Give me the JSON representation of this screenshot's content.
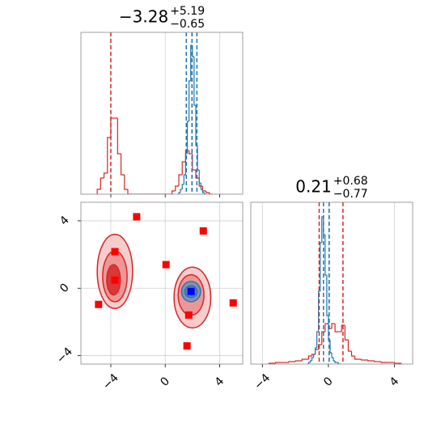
{
  "chart_data": [
    {
      "type": "histogram",
      "title": {
        "value": "−3.28",
        "plus": "+5.19",
        "minus": "−0.65"
      },
      "xlim": [
        -6.2,
        5.7
      ],
      "ylim": [
        0,
        1
      ],
      "xticks": [
        -4,
        0,
        4
      ],
      "grid": true,
      "series": [
        {
          "color": "#d62728",
          "bins": [
            -5,
            -4.75,
            -4.5,
            -4.25,
            -4,
            -3.75,
            -3.5,
            -3.25,
            -3,
            -2.75,
            -2.5,
            -2.25,
            -2,
            -1.75,
            -1.5,
            -1.25,
            -1,
            -0.75,
            -0.5,
            -0.25,
            0,
            0.25,
            0.5,
            0.75,
            1,
            1.25,
            1.5,
            1.75,
            2,
            2.25,
            2.5,
            2.75,
            3,
            3.25,
            3.5
          ],
          "values": [
            0.03,
            0.1,
            0.13,
            0.35,
            0.47,
            0.47,
            0.25,
            0.12,
            0.03,
            0,
            0,
            0,
            0,
            0,
            0,
            0,
            0,
            0,
            0,
            0,
            0,
            0,
            0.02,
            0.05,
            0.12,
            0.2,
            0.27,
            0.25,
            0.15,
            0.1,
            0.05,
            0.02,
            0.01,
            0
          ]
        },
        {
          "color": "#1f77b4",
          "bins": [
            1,
            1.125,
            1.25,
            1.375,
            1.5,
            1.625,
            1.75,
            1.875,
            2,
            2.125,
            2.25,
            2.375,
            2.5,
            2.625,
            2.75,
            2.875,
            3
          ],
          "values": [
            0.01,
            0.03,
            0.06,
            0.12,
            0.25,
            0.45,
            0.7,
            0.92,
            0.85,
            0.55,
            0.3,
            0.15,
            0.07,
            0.03,
            0.01,
            0
          ]
        }
      ],
      "lines": [
        {
          "color": "#d62728",
          "x": [
            -4.0,
            1.97
          ]
        },
        {
          "color": "#1f77b4",
          "x": [
            1.55,
            1.97,
            2.33
          ]
        }
      ]
    },
    {
      "type": "scatter",
      "xlim": [
        -6.2,
        5.7
      ],
      "ylim": [
        -4.5,
        5.1
      ],
      "xticks": [
        {
          "value": -4,
          "label": "−4"
        },
        0,
        4
      ],
      "yticks": [
        {
          "value": -4,
          "label": "−4"
        },
        0,
        4
      ],
      "grid": true,
      "contours": [
        {
          "color": "#d62728",
          "fill": "#f5c4c4",
          "cx": -3.7,
          "cy": 1.0,
          "rx": 1.3,
          "ry": 2.2
        },
        {
          "color": "#d62728",
          "fill": "#ec8c8c",
          "cx": -3.7,
          "cy": 0.7,
          "rx": 0.9,
          "ry": 1.5
        },
        {
          "color": "#d62728",
          "fill": "#d62728",
          "cx": -3.8,
          "cy": 0.5,
          "rx": 0.5,
          "ry": 0.9
        },
        {
          "color": "#d62728",
          "fill": "#f5c4c4",
          "cx": 2.0,
          "cy": -0.55,
          "rx": 1.35,
          "ry": 1.8
        },
        {
          "color": "#d62728",
          "fill": "#ec8c8c",
          "cx": 1.9,
          "cy": -0.4,
          "rx": 0.95,
          "ry": 1.2
        },
        {
          "color": "#d62728",
          "fill": "#d62728",
          "cx": 1.9,
          "cy": -0.2,
          "rx": 0.6,
          "ry": 0.5
        },
        {
          "color": "#1f77b4",
          "fill": "#7f9fc4",
          "cx": 1.9,
          "cy": -0.2,
          "rx": 0.7,
          "ry": 0.6
        },
        {
          "color": "#1f77b4",
          "fill": "#4f7fb8",
          "cx": 1.9,
          "cy": -0.2,
          "rx": 0.45,
          "ry": 0.35
        },
        {
          "color": "#1f77b4",
          "fill": "#1f5fa8",
          "cx": 1.9,
          "cy": -0.2,
          "rx": 0.2,
          "ry": 0.2
        }
      ],
      "series": [
        {
          "color": "#ff0000",
          "x": [
            -2.1,
            2.8,
            -3.7,
            0.06,
            -3.7,
            -4.9,
            5.0,
            1.73,
            1.6
          ],
          "values": [
            4.24,
            3.4,
            2.17,
            1.4,
            0.48,
            -0.96,
            -0.87,
            -1.59,
            -3.42
          ]
        },
        {
          "color": "#0000ff",
          "x": [
            1.9
          ],
          "values": [
            -0.19
          ]
        }
      ]
    },
    {
      "type": "histogram",
      "title": {
        "value": "0.21",
        "plus": "+0.68",
        "minus": "−0.77"
      },
      "xlim": [
        -4.7,
        5.1
      ],
      "ylim": [
        0,
        1
      ],
      "xticks": [
        {
          "value": -4,
          "label": "−4"
        },
        0,
        4
      ],
      "grid": true,
      "series": [
        {
          "color": "#d62728",
          "bins": [
            -3.6,
            -3.2,
            -2.8,
            -2.4,
            -2,
            -1.6,
            -1.2,
            -1,
            -0.8,
            -0.6,
            -0.4,
            -0.2,
            0,
            0.2,
            0.4,
            0.6,
            0.8,
            1,
            1.2,
            1.4,
            1.6,
            2,
            2.4,
            2.8,
            3.2,
            3.6,
            4,
            4.4
          ],
          "values": [
            0.005,
            0.01,
            0.01,
            0.015,
            0.02,
            0.03,
            0.05,
            0.06,
            0.09,
            0.12,
            0.2,
            0.25,
            0.22,
            0.25,
            0.2,
            0.2,
            0.24,
            0.15,
            0.08,
            0.05,
            0.03,
            0.025,
            0.02,
            0.015,
            0.01,
            0.01,
            0.005
          ]
        },
        {
          "color": "#1f77b4",
          "bins": [
            -1.2,
            -1.1,
            -1,
            -0.9,
            -0.8,
            -0.7,
            -0.6,
            -0.5,
            -0.4,
            -0.3,
            -0.2,
            -0.1,
            0,
            0.1,
            0.2,
            0.3,
            0.4,
            0.5,
            0.6,
            0.7,
            0.8
          ],
          "values": [
            0.01,
            0.02,
            0.04,
            0.06,
            0.1,
            0.2,
            0.45,
            0.75,
            0.91,
            0.8,
            0.55,
            0.3,
            0.15,
            0.07,
            0.04,
            0.02,
            0.01,
            0.01,
            0,
            0
          ]
        }
      ],
      "lines": [
        {
          "color": "#d62728",
          "x": [
            -0.56,
            0.88
          ]
        },
        {
          "color": "#1f77b4",
          "x": [
            -0.3,
            0.05
          ]
        }
      ]
    }
  ]
}
